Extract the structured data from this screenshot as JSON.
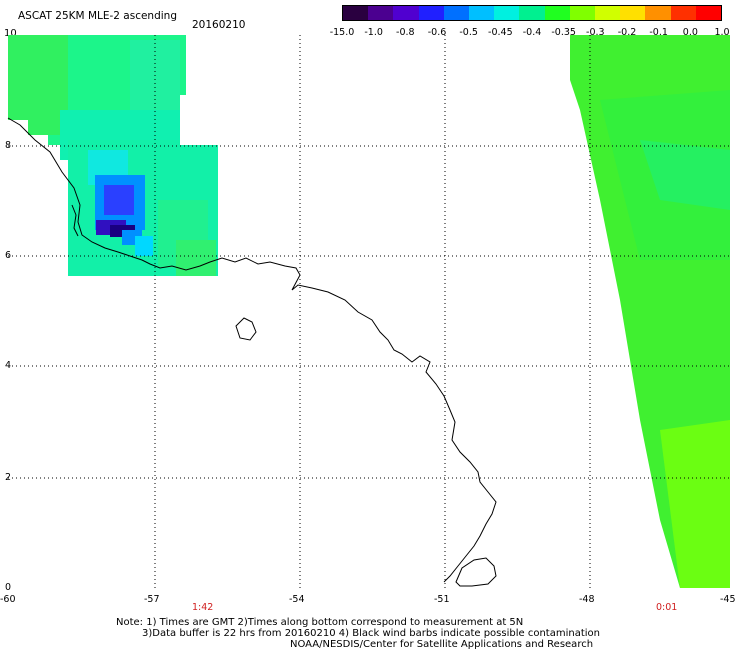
{
  "header": {
    "title": "ASCAT 25KM MLE-2 ascending",
    "date": "20160210",
    "corner_lat": "10"
  },
  "colorbar": {
    "colors": [
      "#2a0040",
      "#4b0090",
      "#5000d0",
      "#2020ff",
      "#0070ff",
      "#00bfff",
      "#00f0e0",
      "#00f090",
      "#20ff20",
      "#80ff00",
      "#d0ff00",
      "#ffe000",
      "#ff9000",
      "#ff3000",
      "#ff0000"
    ],
    "ticks": [
      "-15.0",
      "-1.0",
      "-0.8",
      "-0.6",
      "-0.5",
      "-0.45",
      "-0.4",
      "-0.35",
      "-0.3",
      "-0.2",
      "-0.1",
      "0.0",
      "1.0"
    ]
  },
  "axes": {
    "x_ticks": [
      "-60",
      "-57",
      "-54",
      "-51",
      "-48",
      "-45"
    ],
    "y_ticks": [
      "8",
      "6",
      "4",
      "2",
      "0"
    ],
    "times": [
      "1:42",
      "0:01"
    ]
  },
  "notes": {
    "line1": "Note: 1) Times are GMT 2)Times along bottom correspond to measurement at 5N",
    "line2": "3)Data buffer is 22 hrs from 20160210 4) Black wind barbs indicate possible contamination",
    "line3": "NOAA/NESDIS/Center for Satellite Applications and Research"
  }
}
